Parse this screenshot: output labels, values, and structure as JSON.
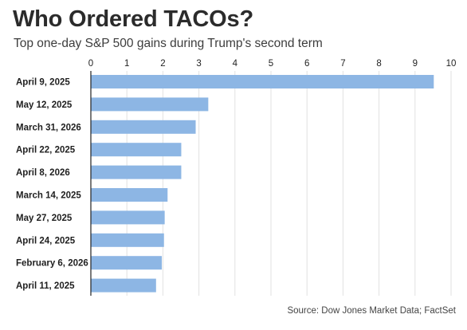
{
  "title": "Who Ordered TACOs?",
  "subtitle": "Top one-day S&P 500 gains during Trump's second term",
  "source": "Source: Dow Jones Market Data; FactSet",
  "colors": {
    "bar": "#8db6e4",
    "axis": "#222222",
    "grid": "#e2e2e2"
  },
  "chart_data": {
    "type": "bar",
    "orientation": "horizontal",
    "title": "Who Ordered TACOs?",
    "subtitle": "Top one-day S&P 500 gains during Trump's second term",
    "categories": [
      "April 9, 2025",
      "May 12, 2025",
      "March 31, 2026",
      "April 22, 2025",
      "April 8, 2026",
      "March 14, 2025",
      "May 27, 2025",
      "April 24, 2025",
      "February 6, 2026",
      "April 11, 2025"
    ],
    "values": [
      9.52,
      3.26,
      2.91,
      2.51,
      2.51,
      2.13,
      2.05,
      2.03,
      1.97,
      1.81
    ],
    "xlim": [
      0,
      10
    ],
    "xticks": [
      0,
      1,
      2,
      3,
      4,
      5,
      6,
      7,
      8,
      9,
      10
    ],
    "xtick_position": "top",
    "xlabel": "",
    "ylabel": "",
    "grid": true,
    "legend": "none"
  }
}
